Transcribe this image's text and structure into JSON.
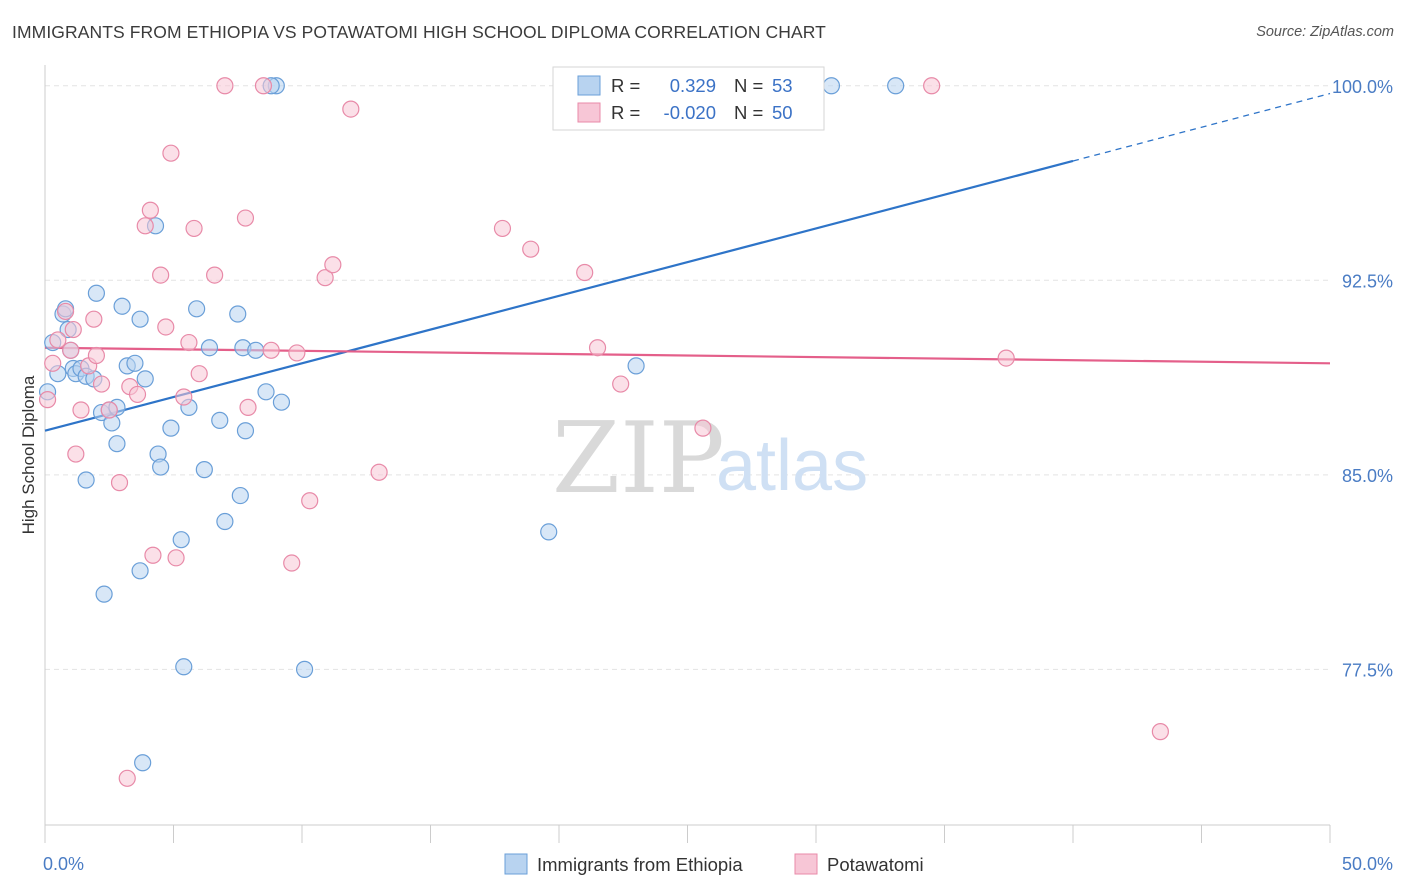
{
  "header": {
    "title": "IMMIGRANTS FROM ETHIOPIA VS POTAWATOMI HIGH SCHOOL DIPLOMA CORRELATION CHART",
    "source": "Source: ZipAtlas.com"
  },
  "watermark": {
    "zip": "ZIP",
    "atlas": "atlas"
  },
  "chart_data": {
    "type": "scatter",
    "ylabel": "High School Diploma",
    "xlim": [
      0,
      50
    ],
    "ylim": [
      71.5,
      100.8
    ],
    "x_tick_labels": [
      {
        "value": 0,
        "label": "0.0%"
      },
      {
        "value": 50,
        "label": "50.0%"
      }
    ],
    "y_ticks": [
      {
        "value": 100,
        "label": "100.0%"
      },
      {
        "value": 92.5,
        "label": "92.5%"
      },
      {
        "value": 85,
        "label": "85.0%"
      },
      {
        "value": 77.5,
        "label": "77.5%"
      }
    ],
    "grid": true,
    "legend_position": "bottom",
    "stats": [
      {
        "series": "Immigrants from Ethiopia",
        "r_label": "R =",
        "r_value": "0.329",
        "n_label": "N =",
        "n_value": "53"
      },
      {
        "series": "Potawatomi",
        "r_label": "R =",
        "r_value": "-0.020",
        "n_label": "N =",
        "n_value": "50"
      }
    ],
    "series": [
      {
        "name": "Immigrants from Ethiopia",
        "color": "#6a9fd8",
        "fill": "#b8d3f0",
        "line_color": "#2e74c8",
        "trend": {
          "x0": 0,
          "y0": 86.7,
          "x1": 40,
          "y1": 97.1,
          "dashed_to_x": 50,
          "dashed_y1": 99.7
        },
        "points": [
          [
            0.1,
            88.2
          ],
          [
            0.3,
            90.1
          ],
          [
            0.5,
            88.9
          ],
          [
            0.7,
            91.2
          ],
          [
            0.8,
            91.4
          ],
          [
            0.9,
            90.6
          ],
          [
            1.0,
            89.8
          ],
          [
            1.1,
            89.1
          ],
          [
            1.2,
            88.9
          ],
          [
            1.4,
            89.1
          ],
          [
            1.6,
            88.8
          ],
          [
            1.9,
            88.7
          ],
          [
            2.2,
            87.4
          ],
          [
            2.5,
            87.5
          ],
          [
            2.6,
            87.0
          ],
          [
            2.8,
            86.2
          ],
          [
            3.2,
            89.2
          ],
          [
            3.5,
            89.3
          ],
          [
            3.0,
            91.5
          ],
          [
            3.9,
            88.7
          ],
          [
            4.4,
            85.8
          ],
          [
            4.5,
            85.3
          ],
          [
            4.9,
            86.8
          ],
          [
            5.6,
            87.6
          ],
          [
            6.2,
            85.2
          ],
          [
            6.4,
            89.9
          ],
          [
            6.8,
            87.1
          ],
          [
            7.0,
            83.2
          ],
          [
            7.5,
            91.2
          ],
          [
            7.6,
            84.2
          ],
          [
            7.7,
            89.9
          ],
          [
            7.8,
            86.7
          ],
          [
            8.6,
            88.2
          ],
          [
            9.2,
            87.8
          ],
          [
            3.7,
            91.0
          ],
          [
            4.3,
            94.6
          ],
          [
            5.9,
            91.4
          ],
          [
            9.0,
            100.0
          ],
          [
            8.8,
            100.0
          ],
          [
            19.6,
            82.8
          ],
          [
            23.0,
            89.2
          ],
          [
            30.6,
            100.0
          ],
          [
            33.1,
            100.0
          ],
          [
            2.0,
            92.0
          ],
          [
            2.3,
            80.4
          ],
          [
            1.6,
            84.8
          ],
          [
            3.7,
            81.3
          ],
          [
            5.3,
            82.5
          ],
          [
            5.4,
            77.6
          ],
          [
            10.1,
            77.5
          ],
          [
            3.8,
            73.9
          ],
          [
            8.2,
            89.8
          ],
          [
            2.8,
            87.6
          ]
        ]
      },
      {
        "name": "Potawatomi",
        "color": "#e88aa8",
        "fill": "#f7c6d6",
        "line_color": "#e45f8a",
        "trend": {
          "x0": 0,
          "y0": 89.9,
          "x1": 50,
          "y1": 89.3
        },
        "points": [
          [
            0.1,
            87.9
          ],
          [
            0.3,
            89.3
          ],
          [
            0.5,
            90.2
          ],
          [
            0.8,
            91.3
          ],
          [
            1.0,
            89.8
          ],
          [
            1.1,
            90.6
          ],
          [
            1.2,
            85.8
          ],
          [
            1.4,
            87.5
          ],
          [
            1.7,
            89.2
          ],
          [
            1.9,
            91.0
          ],
          [
            2.0,
            89.6
          ],
          [
            2.2,
            88.5
          ],
          [
            2.5,
            87.5
          ],
          [
            2.9,
            84.7
          ],
          [
            3.3,
            88.4
          ],
          [
            3.6,
            88.1
          ],
          [
            3.9,
            94.6
          ],
          [
            4.1,
            95.2
          ],
          [
            4.2,
            81.9
          ],
          [
            4.5,
            92.7
          ],
          [
            4.7,
            90.7
          ],
          [
            4.9,
            97.4
          ],
          [
            5.1,
            81.8
          ],
          [
            5.4,
            88.0
          ],
          [
            5.6,
            90.1
          ],
          [
            5.8,
            94.5
          ],
          [
            6.0,
            88.9
          ],
          [
            6.6,
            92.7
          ],
          [
            7.0,
            100.0
          ],
          [
            7.8,
            94.9
          ],
          [
            7.9,
            87.6
          ],
          [
            8.5,
            100.0
          ],
          [
            8.8,
            89.8
          ],
          [
            9.6,
            81.6
          ],
          [
            9.8,
            89.7
          ],
          [
            10.3,
            84.0
          ],
          [
            10.9,
            92.6
          ],
          [
            11.2,
            93.1
          ],
          [
            11.9,
            99.1
          ],
          [
            13.0,
            85.1
          ],
          [
            17.8,
            94.5
          ],
          [
            18.9,
            93.7
          ],
          [
            21.0,
            92.8
          ],
          [
            21.5,
            89.9
          ],
          [
            22.4,
            88.5
          ],
          [
            25.6,
            86.8
          ],
          [
            34.5,
            100.0
          ],
          [
            37.4,
            89.5
          ],
          [
            43.4,
            75.1
          ],
          [
            3.2,
            73.3
          ]
        ]
      }
    ]
  }
}
